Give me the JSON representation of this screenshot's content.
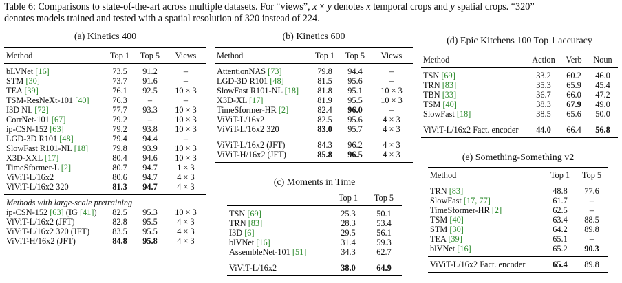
{
  "caption": {
    "line1_a": "Table 6: Comparisons to state-of-the-art across multiple datasets. For “views”, ",
    "line1_x": "x",
    "line1_times": " × ",
    "line1_y": "y",
    "line1_b": " denotes ",
    "line1_x2": "x",
    "line1_c": " temporal crops and ",
    "line1_y2": "y",
    "line1_d": " spatial crops. “320”",
    "line2": "denotes models trained and tested with a spatial resolution of 320 instead of 224."
  },
  "k400": {
    "title": "(a) Kinetics 400",
    "headers": [
      "Method",
      "Top 1",
      "Top 5",
      "Views"
    ],
    "rows": [
      {
        "name": "bLVNet",
        "cite": "[16]",
        "top1": "73.5",
        "top5": "91.2",
        "views": "–"
      },
      {
        "name": "STM",
        "cite": "[30]",
        "top1": "73.7",
        "top5": "91.6",
        "views": "–"
      },
      {
        "name": "TEA",
        "cite": "[39]",
        "top1": "76.1",
        "top5": "92.5",
        "views": "10 × 3"
      },
      {
        "name": "TSM-ResNeXt-101",
        "cite": "[40]",
        "top1": "76.3",
        "top5": "–",
        "views": "–"
      },
      {
        "name": "I3D NL",
        "cite": "[72]",
        "top1": "77.7",
        "top5": "93.3",
        "views": "10 × 3"
      },
      {
        "name": "CorrNet-101",
        "cite": "[67]",
        "top1": "79.2",
        "top5": "–",
        "views": "10 × 3"
      },
      {
        "name": "ip-CSN-152",
        "cite": "[63]",
        "top1": "79.2",
        "top5": "93.8",
        "views": "10 × 3"
      },
      {
        "name": "LGD-3D R101",
        "cite": "[48]",
        "top1": "79.4",
        "top5": "94.4",
        "views": "–"
      },
      {
        "name": "SlowFast R101-NL",
        "cite": "[18]",
        "top1": "79.8",
        "top5": "93.9",
        "views": "10 × 3"
      },
      {
        "name": "X3D-XXL",
        "cite": "[17]",
        "top1": "80.4",
        "top5": "94.6",
        "views": "10 × 3"
      },
      {
        "name": "TimeSformer-L",
        "cite": "[2]",
        "top1": "80.7",
        "top5": "94.7",
        "views": "1 × 3"
      },
      {
        "name": "ViViT-L/16x2",
        "cite": "",
        "top1": "80.6",
        "top5": "94.7",
        "views": "4 × 3"
      },
      {
        "name": "ViViT-L/16x2 320",
        "cite": "",
        "top1": "81.3",
        "top5": "94.7",
        "views": "4 × 3"
      }
    ],
    "pretrain_label": "Methods with large-scale pretraining",
    "pretrain_rows": [
      {
        "name": "ip-CSN-152",
        "cite": "[63]",
        "extra": " (IG ",
        "cite2": "[41]",
        "extra2": ")",
        "top1": "82.5",
        "top5": "95.3",
        "views": "10 × 3"
      },
      {
        "name": "ViViT-L/16x2 (JFT)",
        "cite": "",
        "extra": "",
        "cite2": "",
        "extra2": "",
        "top1": "82.8",
        "top5": "95.5",
        "views": "4 × 3"
      },
      {
        "name": "ViViT-L/16x2 320 (JFT)",
        "cite": "",
        "extra": "",
        "cite2": "",
        "extra2": "",
        "top1": "83.5",
        "top5": "95.5",
        "views": "4 × 3"
      },
      {
        "name": "ViViT-H/16x2 (JFT)",
        "cite": "",
        "extra": "",
        "cite2": "",
        "extra2": "",
        "top1": "84.8",
        "top5": "95.8",
        "views": "4 × 3"
      }
    ]
  },
  "k600": {
    "title": "(b) Kinetics 600",
    "headers": [
      "Method",
      "Top 1",
      "Top 5",
      "Views"
    ],
    "rows": [
      {
        "name": "AttentionNAS",
        "cite": "[73]",
        "top1": "79.8",
        "top5": "94.4",
        "views": "–"
      },
      {
        "name": "LGD-3D R101",
        "cite": "[48]",
        "top1": "81.5",
        "top5": "95.6",
        "views": "–"
      },
      {
        "name": "SlowFast R101-NL",
        "cite": "[18]",
        "top1": "81.8",
        "top5": "95.1",
        "views": "10 × 3"
      },
      {
        "name": "X3D-XL",
        "cite": "[17]",
        "top1": "81.9",
        "top5": "95.5",
        "views": "10 × 3"
      },
      {
        "name": "TimeSformer-HR",
        "cite": "[2]",
        "top1": "82.4",
        "top5": "96.0",
        "views": "–"
      },
      {
        "name": "ViViT-L/16x2",
        "cite": "",
        "top1": "82.5",
        "top5": "95.6",
        "views": "4 × 3"
      },
      {
        "name": "ViViT-L/16x2 320",
        "cite": "",
        "top1": "83.0",
        "top5": "95.7",
        "views": "4 × 3"
      }
    ],
    "jft_rows": [
      {
        "name": "ViViT-L/16x2 (JFT)",
        "top1": "84.3",
        "top5": "96.2",
        "views": "4 × 3"
      },
      {
        "name": "ViViT-H/16x2 (JFT)",
        "top1": "85.8",
        "top5": "96.5",
        "views": "4 × 3"
      }
    ]
  },
  "mit": {
    "title": "(c) Moments in Time",
    "headers": [
      "",
      "Top 1",
      "Top 5"
    ],
    "rows": [
      {
        "name": "TSN",
        "cite": "[69]",
        "top1": "25.3",
        "top5": "50.1"
      },
      {
        "name": "TRN",
        "cite": "[83]",
        "top1": "28.3",
        "top5": "53.4"
      },
      {
        "name": "I3D",
        "cite": "[6]",
        "top1": "29.5",
        "top5": "56.1"
      },
      {
        "name": "blVNet",
        "cite": "[16]",
        "top1": "31.4",
        "top5": "59.3"
      },
      {
        "name": "AssembleNet-101",
        "cite": "[51]",
        "top1": "34.3",
        "top5": "62.7"
      }
    ],
    "final": {
      "name": "ViViT-L/16x2",
      "top1": "38.0",
      "top5": "64.9"
    }
  },
  "epic": {
    "title": "(d) Epic Kitchens 100 Top 1 accuracy",
    "headers": [
      "Method",
      "Action",
      "Verb",
      "Noun"
    ],
    "rows": [
      {
        "name": "TSN",
        "cite": "[69]",
        "action": "33.2",
        "verb": "60.2",
        "noun": "46.0"
      },
      {
        "name": "TRN",
        "cite": "[83]",
        "action": "35.3",
        "verb": "65.9",
        "noun": "45.4"
      },
      {
        "name": "TBN",
        "cite": "[33]",
        "action": "36.7",
        "verb": "66.0",
        "noun": "47.2"
      },
      {
        "name": "TSM",
        "cite": "[40]",
        "action": "38.3",
        "verb": "67.9",
        "noun": "49.0"
      },
      {
        "name": "SlowFast",
        "cite": "[18]",
        "action": "38.5",
        "verb": "65.6",
        "noun": "50.0"
      }
    ],
    "final": {
      "name": "ViViT-L/16x2 Fact. encoder",
      "action": "44.0",
      "verb": "66.4",
      "noun": "56.8"
    }
  },
  "ssv2": {
    "title": "(e) Something-Something v2",
    "headers": [
      "Method",
      "Top 1",
      "Top 5"
    ],
    "rows": [
      {
        "name": "TRN",
        "cite": "[83]",
        "top1": "48.8",
        "top5": "77.6"
      },
      {
        "name": "SlowFast",
        "cite": "[17, 77]",
        "top1": "61.7",
        "top5": "–"
      },
      {
        "name": "TimeSformer-HR",
        "cite": "[2]",
        "top1": "62.5",
        "top5": "–"
      },
      {
        "name": "TSM",
        "cite": "[40]",
        "top1": "63.4",
        "top5": "88.5"
      },
      {
        "name": "STM",
        "cite": "[30]",
        "top1": "64.2",
        "top5": "89.8"
      },
      {
        "name": "TEA",
        "cite": "[39]",
        "top1": "65.1",
        "top5": "–"
      },
      {
        "name": "blVNet",
        "cite": "[16]",
        "top1": "65.2",
        "top5": "90.3"
      }
    ],
    "final": {
      "name": "ViViT-L/16x2 Fact. encoder",
      "top1": "65.4",
      "top5": "89.8"
    }
  }
}
